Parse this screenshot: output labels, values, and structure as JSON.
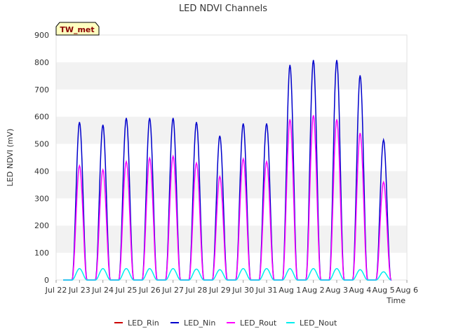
{
  "chart_data": {
    "type": "line",
    "title": "LED NDVI Channels",
    "xlabel": "Time",
    "ylabel": "LED NDVI (mV)",
    "ylim": [
      0,
      900
    ],
    "xlim": [
      "Jul 22",
      "Aug 6"
    ],
    "yticks": [
      0,
      100,
      200,
      300,
      400,
      500,
      600,
      700,
      800,
      900
    ],
    "xticks": [
      "Jul 22",
      "Jul 23",
      "Jul 24",
      "Jul 25",
      "Jul 26",
      "Jul 27",
      "Jul 28",
      "Jul 29",
      "Jul 30",
      "Jul 31",
      "Aug 1",
      "Aug 2",
      "Aug 3",
      "Aug 4",
      "Aug 5",
      "Aug 6"
    ],
    "grid": "horizontal bands",
    "legend_position": "bottom",
    "station_label": "TW_met",
    "series": [
      {
        "name": "LED_Rin",
        "color": "#cc0000",
        "daily_peaks": []
      },
      {
        "name": "LED_Nin",
        "color": "#0000cc",
        "daily_peaks": [
          {
            "date": "Jul 23",
            "peak": 580
          },
          {
            "date": "Jul 24",
            "peak": 570
          },
          {
            "date": "Jul 25",
            "peak": 595
          },
          {
            "date": "Jul 26",
            "peak": 595
          },
          {
            "date": "Jul 27",
            "peak": 595
          },
          {
            "date": "Jul 28",
            "peak": 580
          },
          {
            "date": "Jul 29",
            "peak": 530
          },
          {
            "date": "Jul 30",
            "peak": 575
          },
          {
            "date": "Jul 31",
            "peak": 575
          },
          {
            "date": "Aug 1",
            "peak": 790
          },
          {
            "date": "Aug 2",
            "peak": 808
          },
          {
            "date": "Aug 3",
            "peak": 808
          },
          {
            "date": "Aug 4",
            "peak": 752
          },
          {
            "date": "Aug 5",
            "peak": 515
          }
        ]
      },
      {
        "name": "LED_Rout",
        "color": "#ff00ff",
        "daily_peaks": [
          {
            "date": "Jul 23",
            "peak": 420
          },
          {
            "date": "Jul 24",
            "peak": 405
          },
          {
            "date": "Jul 25",
            "peak": 435
          },
          {
            "date": "Jul 26",
            "peak": 448
          },
          {
            "date": "Jul 27",
            "peak": 455
          },
          {
            "date": "Jul 28",
            "peak": 430
          },
          {
            "date": "Jul 29",
            "peak": 380
          },
          {
            "date": "Jul 30",
            "peak": 445
          },
          {
            "date": "Jul 31",
            "peak": 435
          },
          {
            "date": "Aug 1",
            "peak": 590
          },
          {
            "date": "Aug 2",
            "peak": 605
          },
          {
            "date": "Aug 3",
            "peak": 590
          },
          {
            "date": "Aug 4",
            "peak": 540
          },
          {
            "date": "Aug 5",
            "peak": 360
          }
        ]
      },
      {
        "name": "LED_Nout",
        "color": "#00eeee",
        "daily_peaks": [
          {
            "date": "Jul 23",
            "peak": 42
          },
          {
            "date": "Jul 24",
            "peak": 42
          },
          {
            "date": "Jul 25",
            "peak": 42
          },
          {
            "date": "Jul 26",
            "peak": 42
          },
          {
            "date": "Jul 27",
            "peak": 42
          },
          {
            "date": "Jul 28",
            "peak": 40
          },
          {
            "date": "Jul 29",
            "peak": 38
          },
          {
            "date": "Jul 30",
            "peak": 42
          },
          {
            "date": "Jul 31",
            "peak": 42
          },
          {
            "date": "Aug 1",
            "peak": 42
          },
          {
            "date": "Aug 2",
            "peak": 42
          },
          {
            "date": "Aug 3",
            "peak": 42
          },
          {
            "date": "Aug 4",
            "peak": 38
          },
          {
            "date": "Aug 5",
            "peak": 30
          }
        ]
      }
    ]
  }
}
